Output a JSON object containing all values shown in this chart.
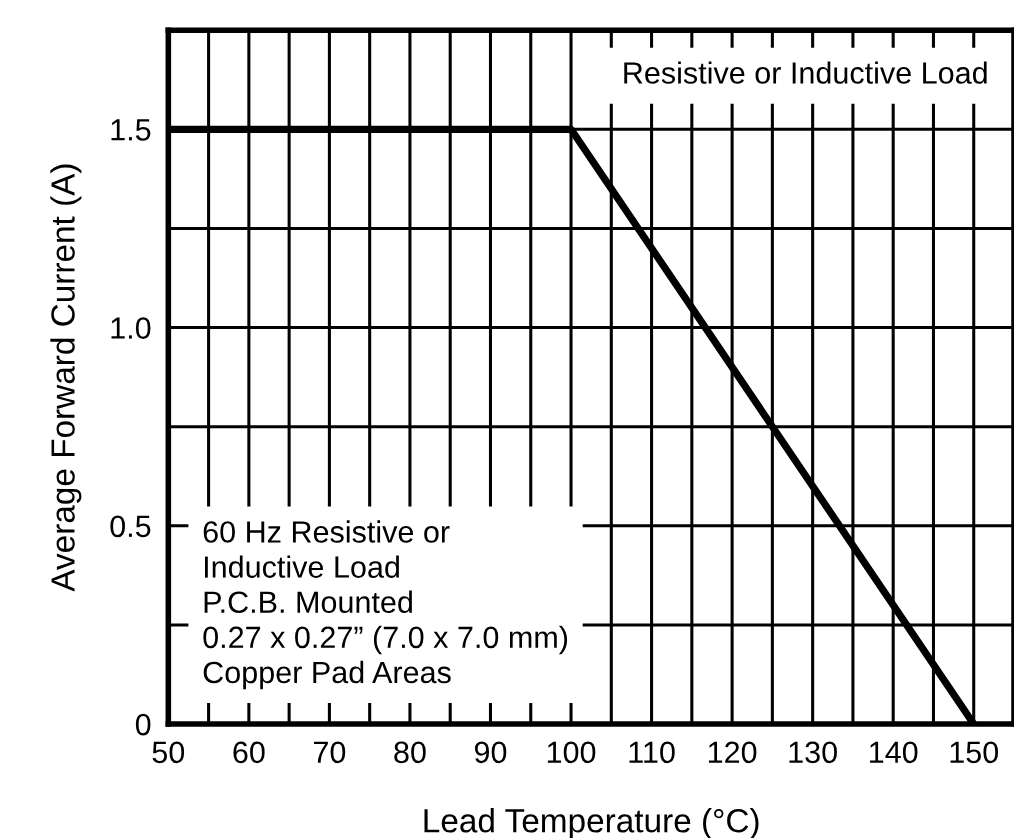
{
  "chart_data": {
    "type": "line",
    "xlabel": "Lead Temperature (°C)",
    "ylabel": "Average Forward Current (A)",
    "x": [
      50,
      100,
      150
    ],
    "series": [
      {
        "color": "#000000",
        "values": [
          1.5,
          1.5,
          0
        ]
      }
    ],
    "xlim": [
      50,
      155
    ],
    "xticks": [
      50,
      {
        "value": 55,
        "label": null
      },
      60,
      {
        "value": 65,
        "label": null
      },
      70,
      {
        "value": 75,
        "label": null
      },
      80,
      {
        "value": 85,
        "label": null
      },
      90,
      {
        "value": 95,
        "label": null
      },
      100,
      {
        "value": 105,
        "label": null
      },
      110,
      {
        "value": 115,
        "label": null
      },
      120,
      {
        "value": 125,
        "label": null
      },
      130,
      {
        "value": 135,
        "label": null
      },
      140,
      {
        "value": 145,
        "label": null
      },
      150
    ],
    "ylim": [
      0,
      1.75
    ],
    "yticks": [
      0,
      {
        "value": 0.25,
        "label": null
      },
      0.5,
      {
        "value": 0.75,
        "label": null
      },
      {
        "value": 1.0,
        "label": "1.0"
      },
      {
        "value": 1.25,
        "label": null
      },
      1.5
    ],
    "grid": true,
    "marker": "none",
    "line_style": "solid",
    "legend": false,
    "annotations": [
      "Resistive or Inductive Load",
      "60 Hz Resistive or\nInductive Load\nP.C.B. Mounted\n0.27 x 0.27” (7.0 x 7.0 mm)\nCopper Pad Areas"
    ]
  }
}
